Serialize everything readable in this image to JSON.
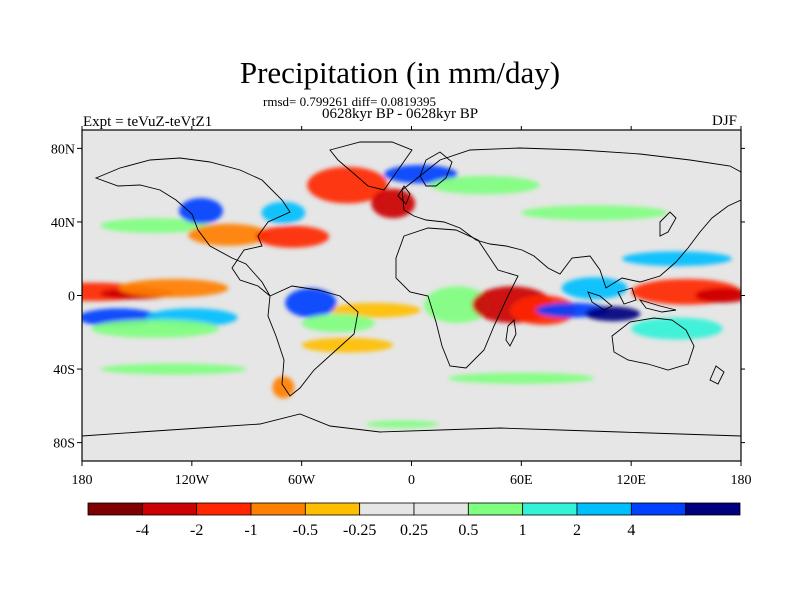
{
  "title": "Precipitation (in mm/day)",
  "stats_line": "rmsd= 0.799261 diff= 0.0819395",
  "period_line": "0628kyr BP - 0628kyr BP",
  "experiment_label": "Expt = teVuZ-teVtZ1",
  "season_label": "DJF",
  "map": {
    "projection": "cylindrical equidistant",
    "lon_range": [
      -180,
      180
    ],
    "lat_range": [
      -90,
      90
    ],
    "lon_ticks": [
      {
        "value": -180,
        "label": "180"
      },
      {
        "value": -120,
        "label": "120W"
      },
      {
        "value": -60,
        "label": "60W"
      },
      {
        "value": 0,
        "label": "0"
      },
      {
        "value": 60,
        "label": "60E"
      },
      {
        "value": 120,
        "label": "120E"
      },
      {
        "value": 180,
        "label": "180"
      }
    ],
    "lat_ticks": [
      {
        "value": 80,
        "label": "80N"
      },
      {
        "value": 40,
        "label": "40N"
      },
      {
        "value": 0,
        "label": "0"
      },
      {
        "value": -40,
        "label": "40S"
      },
      {
        "value": -80,
        "label": "80S"
      }
    ],
    "background_color": "#e6e6e6",
    "coastline_color": "#000000"
  },
  "colorbar": {
    "colors": [
      "#7f0000",
      "#cc0000",
      "#ff2600",
      "#ff7f00",
      "#ffbf00",
      "#e6e6e6",
      "#e6e6e6",
      "#7fff7f",
      "#33f2d8",
      "#00bfff",
      "#0040ff",
      "#00007f"
    ],
    "labels": [
      {
        "boundary": 1,
        "text": "-4"
      },
      {
        "boundary": 2,
        "text": "-2"
      },
      {
        "boundary": 3,
        "text": "-1"
      },
      {
        "boundary": 4,
        "text": "-0.5"
      },
      {
        "boundary": 5,
        "text": "-0.25"
      },
      {
        "boundary": 6,
        "text": "0.25"
      },
      {
        "boundary": 7,
        "text": "0.5"
      },
      {
        "boundary": 8,
        "text": "1"
      },
      {
        "boundary": 9,
        "text": "2"
      },
      {
        "boundary": 10,
        "text": "4"
      }
    ]
  },
  "anomaly_blobs": [
    {
      "lon": -175,
      "lat": 2,
      "rlon": 35,
      "rlat": 5,
      "color": "#ff2600"
    },
    {
      "lon": -150,
      "lat": 1,
      "rlon": 20,
      "rlat": 3,
      "color": "#cc0000"
    },
    {
      "lon": -130,
      "lat": 4,
      "rlon": 30,
      "rlat": 5,
      "color": "#ff7f00"
    },
    {
      "lon": -160,
      "lat": -12,
      "rlon": 22,
      "rlat": 5,
      "color": "#0040ff"
    },
    {
      "lon": -120,
      "lat": -12,
      "rlon": 25,
      "rlat": 5,
      "color": "#00bfff"
    },
    {
      "lon": -140,
      "lat": -18,
      "rlon": 35,
      "rlat": 5,
      "color": "#7fff7f"
    },
    {
      "lon": -140,
      "lat": 38,
      "rlon": 30,
      "rlat": 4,
      "color": "#7fff7f"
    },
    {
      "lon": -115,
      "lat": 46,
      "rlon": 12,
      "rlat": 7,
      "color": "#0040ff"
    },
    {
      "lon": -100,
      "lat": 33,
      "rlon": 22,
      "rlat": 6,
      "color": "#ff7f00"
    },
    {
      "lon": -65,
      "lat": 32,
      "rlon": 20,
      "rlat": 6,
      "color": "#ff2600"
    },
    {
      "lon": -70,
      "lat": 45,
      "rlon": 12,
      "rlat": 6,
      "color": "#00bfff"
    },
    {
      "lon": -35,
      "lat": 60,
      "rlon": 22,
      "rlat": 10,
      "color": "#ff2600"
    },
    {
      "lon": -10,
      "lat": 50,
      "rlon": 12,
      "rlat": 8,
      "color": "#cc0000"
    },
    {
      "lon": 5,
      "lat": 66,
      "rlon": 20,
      "rlat": 5,
      "color": "#0040ff"
    },
    {
      "lon": 40,
      "lat": 60,
      "rlon": 30,
      "rlat": 5,
      "color": "#7fff7f"
    },
    {
      "lon": 100,
      "lat": 45,
      "rlon": 40,
      "rlat": 4,
      "color": "#7fff7f"
    },
    {
      "lon": -20,
      "lat": -8,
      "rlon": 25,
      "rlat": 4,
      "color": "#ffbf00"
    },
    {
      "lon": -55,
      "lat": -4,
      "rlon": 14,
      "rlat": 8,
      "color": "#0040ff"
    },
    {
      "lon": -40,
      "lat": -15,
      "rlon": 20,
      "rlat": 5,
      "color": "#7fff7f"
    },
    {
      "lon": -35,
      "lat": -27,
      "rlon": 25,
      "rlat": 4,
      "color": "#ffbf00"
    },
    {
      "lon": 25,
      "lat": -5,
      "rlon": 18,
      "rlat": 10,
      "color": "#7fff7f"
    },
    {
      "lon": 55,
      "lat": -5,
      "rlon": 22,
      "rlat": 10,
      "color": "#cc0000"
    },
    {
      "lon": 72,
      "lat": -8,
      "rlon": 18,
      "rlat": 8,
      "color": "#ff2600"
    },
    {
      "lon": 88,
      "lat": -8,
      "rlon": 20,
      "rlat": 4,
      "color": "#0040ff"
    },
    {
      "lon": 100,
      "lat": 4,
      "rlon": 18,
      "rlat": 6,
      "color": "#00bfff"
    },
    {
      "lon": 110,
      "lat": -10,
      "rlon": 15,
      "rlat": 4,
      "color": "#00007f"
    },
    {
      "lon": 150,
      "lat": 2,
      "rlon": 30,
      "rlat": 7,
      "color": "#ff2600"
    },
    {
      "lon": 170,
      "lat": 0,
      "rlon": 15,
      "rlat": 4,
      "color": "#cc0000"
    },
    {
      "lon": 145,
      "lat": -18,
      "rlon": 25,
      "rlat": 6,
      "color": "#33f2d8"
    },
    {
      "lon": 145,
      "lat": 20,
      "rlon": 30,
      "rlat": 4,
      "color": "#00bfff"
    },
    {
      "lon": 60,
      "lat": -45,
      "rlon": 40,
      "rlat": 3,
      "color": "#7fff7f"
    },
    {
      "lon": -130,
      "lat": -40,
      "rlon": 40,
      "rlat": 3,
      "color": "#7fff7f"
    },
    {
      "lon": -5,
      "lat": -70,
      "rlon": 20,
      "rlat": 2,
      "color": "#7fff7f"
    },
    {
      "lon": -70,
      "lat": -50,
      "rlon": 6,
      "rlat": 6,
      "color": "#ff7f00"
    }
  ]
}
